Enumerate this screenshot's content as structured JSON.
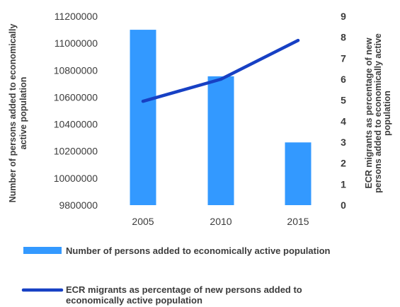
{
  "chart_data": {
    "type": "bar+line",
    "categories": [
      "2005",
      "2010",
      "2015"
    ],
    "series": [
      {
        "name": "Number of persons added to economically active population",
        "type": "bar",
        "axis": "left",
        "color": "#3399ff",
        "values": [
          11100000,
          10755000,
          10265000
        ]
      },
      {
        "name": "ECR migrants as percentage of new persons added to economically active population",
        "type": "line",
        "axis": "right",
        "color": "#1740c4",
        "values": [
          4.95,
          6.0,
          7.85
        ]
      }
    ],
    "y_left": {
      "label_lines": [
        "Number of persons added to economically",
        "active population"
      ],
      "ylim": [
        9800000,
        11200000
      ],
      "ticks": [
        9800000,
        10000000,
        10200000,
        10400000,
        10600000,
        10800000,
        11000000,
        11200000
      ]
    },
    "y_right": {
      "label_lines": [
        "ECR migrants as percentage of new",
        "persons added to economically active",
        "population"
      ],
      "ylim": [
        0,
        9
      ],
      "ticks": [
        0,
        1,
        2,
        3,
        4,
        5,
        6,
        7,
        8,
        9
      ]
    },
    "legend": {
      "position": "bottom",
      "bar_entry": "Number of persons added to economically active population",
      "line_entry_lines": [
        "ECR migrants as percentage of new persons added to",
        "economically active population"
      ]
    },
    "grid": false
  }
}
